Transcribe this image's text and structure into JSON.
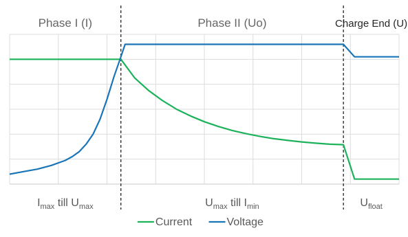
{
  "chart_data": {
    "type": "line",
    "title": "",
    "xlabel": "",
    "ylabel": "",
    "grid": true,
    "legend_position": "bottom",
    "xlim": [
      0,
      28
    ],
    "ylim": [
      0,
      6
    ],
    "phases": [
      {
        "title": "Phase I (I)",
        "range_main": "I",
        "range_sub1": "max",
        "range_mid": " till U",
        "range_sub2": "max"
      },
      {
        "title": "Phase II (Uo)",
        "range_main": "U",
        "range_sub1": "max",
        "range_mid": " till I",
        "range_sub2": "min"
      },
      {
        "title": "Charge End (U)",
        "range_main": "U",
        "range_sub1": "float",
        "range_mid": "",
        "range_sub2": ""
      }
    ],
    "phase_boundaries": [
      8,
      24
    ],
    "series": [
      {
        "name": "Current",
        "color": "#1bb25a",
        "x": [
          0,
          8,
          9,
          10,
          11,
          12,
          13,
          14,
          15,
          16,
          17,
          18,
          19,
          20,
          21,
          22,
          23,
          24,
          24.8,
          28
        ],
        "y": [
          5.0,
          5.0,
          4.25,
          3.75,
          3.34,
          3.0,
          2.73,
          2.5,
          2.31,
          2.15,
          2.02,
          1.91,
          1.82,
          1.75,
          1.69,
          1.64,
          1.6,
          1.58,
          0.2,
          0.2
        ]
      },
      {
        "name": "Voltage",
        "color": "#1a75b6",
        "x": [
          0,
          1,
          2,
          3,
          4,
          4.5,
          5,
          5.5,
          6,
          6.5,
          7,
          7.5,
          8,
          8.3,
          24,
          24.8,
          28
        ],
        "y": [
          0.4,
          0.5,
          0.6,
          0.75,
          0.95,
          1.1,
          1.3,
          1.6,
          2.0,
          2.6,
          3.4,
          4.3,
          5.1,
          5.6,
          5.6,
          5.1,
          5.1
        ]
      }
    ]
  }
}
